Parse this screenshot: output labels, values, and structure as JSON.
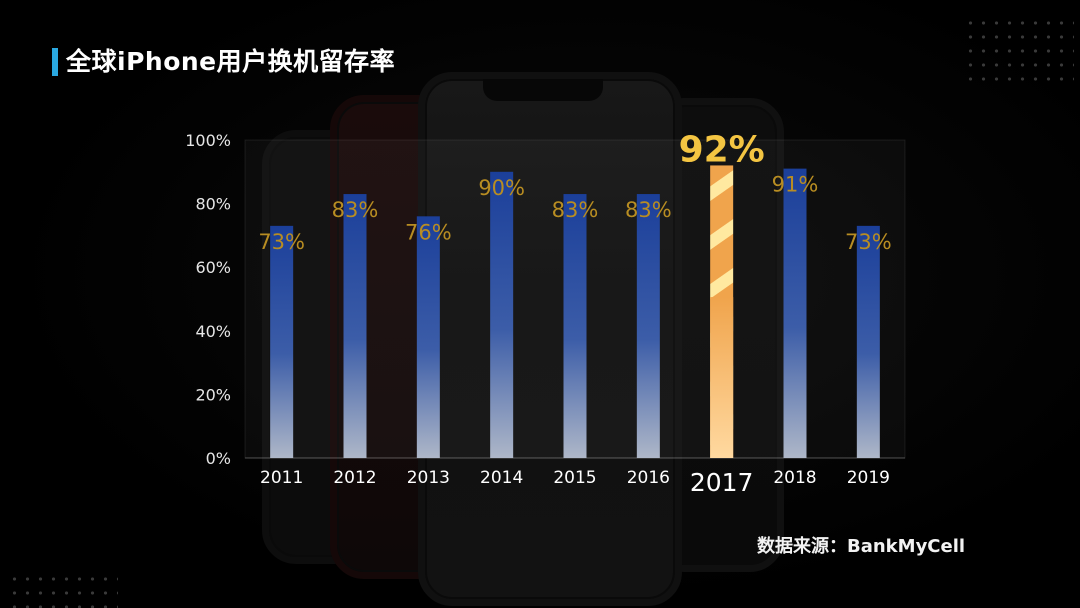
{
  "title": "全球iPhone用户换机留存率",
  "source": "数据来源：BankMyCell",
  "colors": {
    "title_accent": "#2aa8e0",
    "bar_top": "#1b3f9a",
    "bar_bottom": "#aeb7c8",
    "highlight_bar": "#f0a44c",
    "highlight_stripe": "#ffe9a0",
    "value_label": "#b88d22",
    "highlight_label": "#f4c542"
  },
  "chart_data": {
    "type": "bar",
    "categories": [
      "2011",
      "2012",
      "2013",
      "2014",
      "2015",
      "2016",
      "2017",
      "2018",
      "2019"
    ],
    "values": [
      73,
      83,
      76,
      90,
      83,
      83,
      92,
      91,
      73
    ],
    "value_labels": [
      "73%",
      "83%",
      "76%",
      "90%",
      "83%",
      "83%",
      "92%",
      "91%",
      "73%"
    ],
    "y_ticks": [
      "0%",
      "20%",
      "40%",
      "60%",
      "80%",
      "100%"
    ],
    "ylim": [
      0,
      100
    ],
    "highlight": "2017",
    "title": "",
    "xlabel": "",
    "ylabel": "",
    "grid": false
  }
}
